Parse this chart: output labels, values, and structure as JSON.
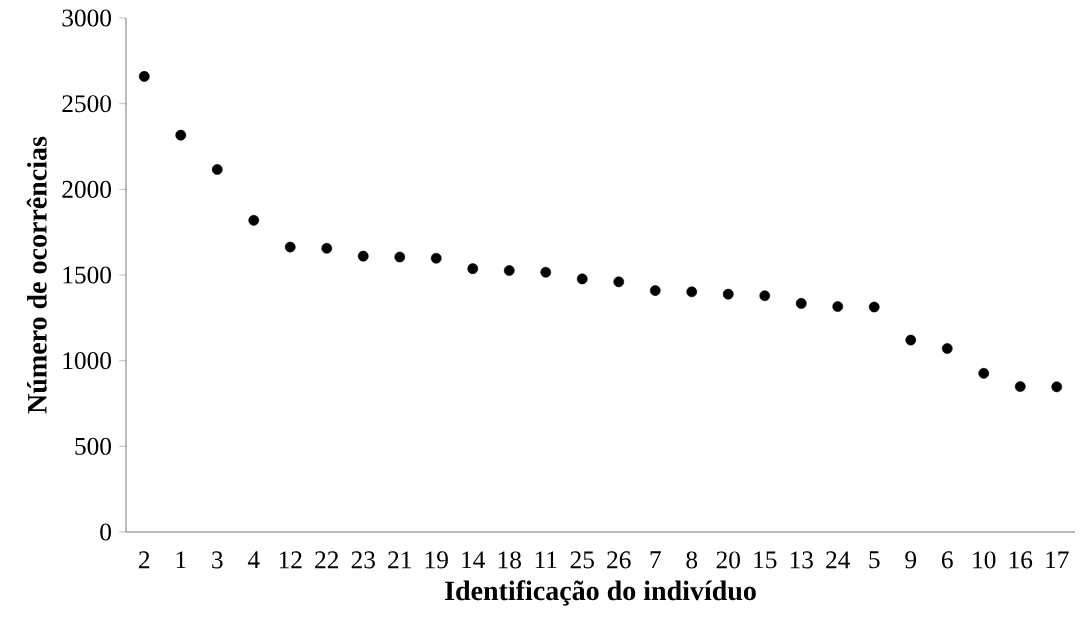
{
  "chart_data": {
    "type": "scatter",
    "xlabel": "Identificação do indivíduo",
    "ylabel": "Número de ocorrências",
    "categories": [
      "2",
      "1",
      "3",
      "4",
      "12",
      "22",
      "23",
      "21",
      "19",
      "14",
      "18",
      "11",
      "25",
      "26",
      "7",
      "8",
      "20",
      "15",
      "13",
      "24",
      "5",
      "9",
      "6",
      "10",
      "16",
      "17"
    ],
    "values": [
      2659,
      2316,
      2116,
      1819,
      1663,
      1656,
      1610,
      1605,
      1598,
      1537,
      1526,
      1516,
      1477,
      1460,
      1409,
      1402,
      1388,
      1379,
      1334,
      1316,
      1313,
      1120,
      1071,
      926,
      849,
      847
    ],
    "color": "#000000",
    "marker": "circle",
    "ylim": [
      0,
      3000
    ],
    "yticks": [
      0,
      500,
      1000,
      1500,
      2000,
      2500,
      3000
    ],
    "grid": false
  }
}
